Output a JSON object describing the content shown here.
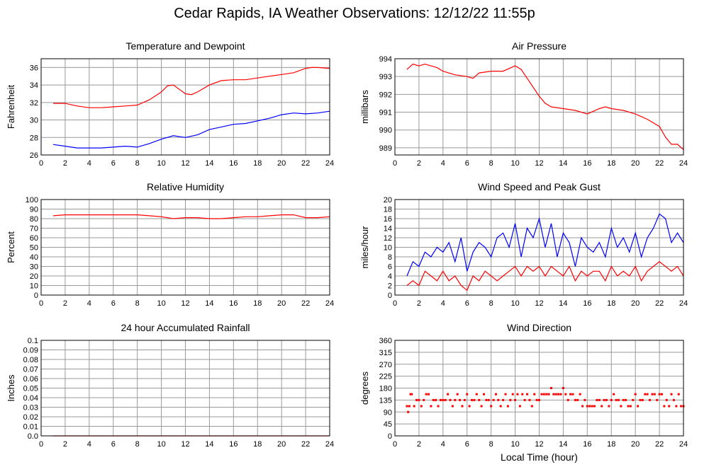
{
  "page": {
    "title": "Cedar Rapids, IA Weather Observations: 12/12/22 11:55p"
  },
  "colors": {
    "red": "#ff0000",
    "blue": "#0000ff",
    "grid": "#999999",
    "frame": "#000000"
  },
  "chart_data": [
    {
      "id": "temp",
      "type": "line",
      "title": "Temperature and Dewpoint",
      "xlabel": "",
      "ylabel": "Fahrenheit",
      "xlim": [
        0,
        24
      ],
      "ylim": [
        26,
        37
      ],
      "xticks": [
        0,
        2,
        4,
        6,
        8,
        10,
        12,
        14,
        16,
        18,
        20,
        22,
        24
      ],
      "yticks": [
        26,
        28,
        30,
        32,
        34,
        36
      ],
      "grid": true,
      "series": [
        {
          "color": "#ff0000",
          "x": [
            1,
            2,
            3,
            4,
            5,
            6,
            7,
            8,
            9,
            10,
            10.5,
            11,
            11.5,
            12,
            12.5,
            13,
            14,
            15,
            16,
            17,
            18,
            19,
            20,
            21,
            22,
            22.5,
            23,
            24
          ],
          "y": [
            31.9,
            31.9,
            31.6,
            31.4,
            31.4,
            31.5,
            31.6,
            31.7,
            32.3,
            33.2,
            33.9,
            34.0,
            33.5,
            33.0,
            32.9,
            33.2,
            34.0,
            34.5,
            34.6,
            34.6,
            34.8,
            35.0,
            35.2,
            35.4,
            35.9,
            36.0,
            36.0,
            35.9
          ]
        },
        {
          "color": "#0000ff",
          "x": [
            1,
            2,
            3,
            4,
            5,
            6,
            7,
            8,
            9,
            10,
            11,
            12,
            13,
            14,
            15,
            16,
            17,
            18,
            19,
            20,
            21,
            22,
            23,
            24
          ],
          "y": [
            27.2,
            27.0,
            26.8,
            26.8,
            26.8,
            26.9,
            27.0,
            26.9,
            27.3,
            27.8,
            28.2,
            28.0,
            28.3,
            28.9,
            29.2,
            29.5,
            29.6,
            29.9,
            30.2,
            30.6,
            30.8,
            30.7,
            30.8,
            31.0
          ]
        }
      ]
    },
    {
      "id": "pressure",
      "type": "line",
      "title": "Air Pressure",
      "xlabel": "",
      "ylabel": "millibars",
      "xlim": [
        0,
        24
      ],
      "ylim": [
        988.6,
        994
      ],
      "xticks": [
        0,
        2,
        4,
        6,
        8,
        10,
        12,
        14,
        16,
        18,
        20,
        22,
        24
      ],
      "yticks": [
        989,
        990,
        991,
        992,
        993,
        994
      ],
      "grid": true,
      "series": [
        {
          "color": "#ff0000",
          "x": [
            1,
            1.5,
            2,
            2.5,
            3,
            3.5,
            4,
            5,
            6,
            6.5,
            7,
            8,
            9,
            10,
            10.5,
            11,
            11.5,
            12,
            12.5,
            13,
            14,
            15,
            16,
            17,
            17.5,
            18,
            19,
            20,
            21,
            22,
            22.5,
            23,
            23.5,
            24
          ],
          "y": [
            993.4,
            993.7,
            993.6,
            993.7,
            993.6,
            993.5,
            993.3,
            993.1,
            993.0,
            992.9,
            993.2,
            993.3,
            993.3,
            993.6,
            993.4,
            992.9,
            992.4,
            991.9,
            991.5,
            991.3,
            991.2,
            991.1,
            990.9,
            991.2,
            991.3,
            991.2,
            991.1,
            990.9,
            990.6,
            990.2,
            989.6,
            989.2,
            989.2,
            988.9
          ]
        }
      ]
    },
    {
      "id": "humidity",
      "type": "line",
      "title": "Relative Humidity",
      "xlabel": "",
      "ylabel": "Percent",
      "xlim": [
        0,
        24
      ],
      "ylim": [
        0,
        100
      ],
      "xticks": [
        0,
        2,
        4,
        6,
        8,
        10,
        12,
        14,
        16,
        18,
        20,
        22,
        24
      ],
      "yticks": [
        0,
        10,
        20,
        30,
        40,
        50,
        60,
        70,
        80,
        90,
        100
      ],
      "grid": true,
      "series": [
        {
          "color": "#ff0000",
          "x": [
            1,
            2,
            3,
            4,
            5,
            6,
            7,
            8,
            9,
            10,
            11,
            12,
            13,
            14,
            15,
            16,
            17,
            18,
            19,
            20,
            21,
            22,
            23,
            24
          ],
          "y": [
            83,
            84,
            84,
            84,
            84,
            84,
            84,
            84,
            83,
            82,
            80,
            81,
            81,
            80,
            80,
            81,
            82,
            82,
            83,
            84,
            84,
            81,
            81,
            82
          ]
        }
      ]
    },
    {
      "id": "wind",
      "type": "line",
      "title": "Wind Speed and Peak Gust",
      "xlabel": "",
      "ylabel": "miles/hour",
      "xlim": [
        0,
        24
      ],
      "ylim": [
        0,
        20
      ],
      "xticks": [
        0,
        2,
        4,
        6,
        8,
        10,
        12,
        14,
        16,
        18,
        20,
        22,
        24
      ],
      "yticks": [
        0,
        2,
        4,
        6,
        8,
        10,
        12,
        14,
        16,
        18,
        20
      ],
      "grid": true,
      "series": [
        {
          "color": "#0000ff",
          "x": [
            1,
            1.5,
            2,
            2.5,
            3,
            3.5,
            4,
            4.5,
            5,
            5.5,
            6,
            6.5,
            7,
            7.5,
            8,
            8.5,
            9,
            9.5,
            10,
            10.5,
            11,
            11.5,
            12,
            12.5,
            13,
            13.5,
            14,
            14.5,
            15,
            15.5,
            16,
            16.5,
            17,
            17.5,
            18,
            18.5,
            19,
            19.5,
            20,
            20.5,
            21,
            21.5,
            22,
            22.5,
            23,
            23.5,
            24
          ],
          "y": [
            4,
            7,
            6,
            9,
            8,
            10,
            9,
            11,
            7,
            12,
            5,
            9,
            11,
            10,
            8,
            12,
            13,
            10,
            15,
            8,
            14,
            12,
            16,
            10,
            15,
            8,
            13,
            11,
            6,
            12,
            10,
            9,
            11,
            8,
            14,
            10,
            12,
            9,
            13,
            8,
            12,
            14,
            17,
            16,
            11,
            13,
            11
          ]
        },
        {
          "color": "#ff0000",
          "x": [
            1,
            1.5,
            2,
            2.5,
            3,
            3.5,
            4,
            4.5,
            5,
            5.5,
            6,
            6.5,
            7,
            7.5,
            8,
            8.5,
            9,
            9.5,
            10,
            10.5,
            11,
            11.5,
            12,
            12.5,
            13,
            13.5,
            14,
            14.5,
            15,
            15.5,
            16,
            16.5,
            17,
            17.5,
            18,
            18.5,
            19,
            19.5,
            20,
            20.5,
            21,
            21.5,
            22,
            22.5,
            23,
            23.5,
            24
          ],
          "y": [
            2,
            3,
            2,
            5,
            4,
            3,
            5,
            3,
            4,
            2,
            1,
            4,
            3,
            5,
            4,
            3,
            4,
            5,
            6,
            4,
            6,
            5,
            6,
            4,
            6,
            5,
            4,
            6,
            3,
            5,
            4,
            5,
            5,
            3,
            6,
            4,
            5,
            4,
            6,
            3,
            5,
            6,
            7,
            6,
            5,
            6,
            4
          ]
        }
      ]
    },
    {
      "id": "rain",
      "type": "line",
      "title": "24 hour Accumulated Rainfall",
      "xlabel": "",
      "ylabel": "Inches",
      "xlim": [
        0,
        24
      ],
      "ylim": [
        0,
        0.1
      ],
      "xticks": [
        0,
        2,
        4,
        6,
        8,
        10,
        12,
        14,
        16,
        18,
        20,
        22,
        24
      ],
      "yticks": [
        0.0,
        0.01,
        0.02,
        0.03,
        0.04,
        0.05,
        0.06,
        0.07,
        0.08,
        0.09,
        0.1
      ],
      "ytick_labels": [
        "0.0",
        "0.01",
        "0.02",
        "0.03",
        "0.04",
        "0.05",
        "0.06",
        "0.07",
        "0.08",
        "0.09",
        "0.1"
      ],
      "grid": true,
      "series": [
        {
          "color": "#ff0000",
          "x": [
            1,
            24
          ],
          "y": [
            0,
            0
          ]
        }
      ]
    },
    {
      "id": "direction",
      "type": "scatter",
      "title": "Wind Direction",
      "xlabel": "Local Time (hour)",
      "ylabel": "degrees",
      "xlim": [
        0,
        24
      ],
      "ylim": [
        0,
        360
      ],
      "xticks": [
        0,
        2,
        4,
        6,
        8,
        10,
        12,
        14,
        16,
        18,
        20,
        22,
        24
      ],
      "yticks": [
        0,
        45,
        90,
        135,
        180,
        225,
        270,
        315,
        360
      ],
      "grid": true,
      "series": [
        {
          "color": "#ff0000",
          "x": [
            1.0,
            1.1,
            1.2,
            1.3,
            1.4,
            1.6,
            1.8,
            2.0,
            2.2,
            2.4,
            2.6,
            2.8,
            3.0,
            3.2,
            3.4,
            3.6,
            3.8,
            4.0,
            4.2,
            4.4,
            4.6,
            4.8,
            5.0,
            5.2,
            5.4,
            5.6,
            5.8,
            6.0,
            6.2,
            6.4,
            6.6,
            6.8,
            7.0,
            7.2,
            7.4,
            7.6,
            7.8,
            8.0,
            8.2,
            8.4,
            8.6,
            8.8,
            9.0,
            9.2,
            9.4,
            9.6,
            9.8,
            10.0,
            10.2,
            10.4,
            10.6,
            10.8,
            11.0,
            11.2,
            11.4,
            11.6,
            11.8,
            12.0,
            12.2,
            12.4,
            12.6,
            12.8,
            13.0,
            13.2,
            13.4,
            13.6,
            13.8,
            14.0,
            14.2,
            14.4,
            14.6,
            14.8,
            15.0,
            15.2,
            15.4,
            15.6,
            15.8,
            16.0,
            16.2,
            16.4,
            16.6,
            16.8,
            17.0,
            17.2,
            17.4,
            17.6,
            17.8,
            18.0,
            18.2,
            18.4,
            18.6,
            18.8,
            19.0,
            19.2,
            19.4,
            19.6,
            19.8,
            20.0,
            20.2,
            20.4,
            20.6,
            20.8,
            21.0,
            21.2,
            21.4,
            21.6,
            21.8,
            22.0,
            22.2,
            22.4,
            22.6,
            22.8,
            23.0,
            23.2,
            23.4,
            23.6,
            23.8,
            24.0
          ],
          "y": [
            112,
            90,
            112,
            157,
            157,
            112,
            135,
            135,
            112,
            135,
            157,
            157,
            112,
            135,
            135,
            112,
            135,
            135,
            135,
            157,
            135,
            112,
            135,
            157,
            135,
            112,
            135,
            157,
            112,
            135,
            135,
            157,
            135,
            112,
            157,
            135,
            135,
            112,
            135,
            157,
            135,
            112,
            135,
            157,
            112,
            135,
            157,
            135,
            157,
            112,
            157,
            135,
            157,
            135,
            112,
            157,
            135,
            135,
            157,
            157,
            157,
            157,
            180,
            157,
            157,
            157,
            157,
            180,
            157,
            135,
            157,
            157,
            135,
            135,
            157,
            112,
            135,
            112,
            112,
            112,
            112,
            135,
            135,
            112,
            135,
            135,
            112,
            135,
            157,
            135,
            135,
            112,
            135,
            135,
            112,
            112,
            135,
            157,
            112,
            135,
            135,
            157,
            157,
            135,
            157,
            157,
            135,
            157,
            157,
            112,
            135,
            112,
            157,
            135,
            112,
            157,
            112,
            112
          ]
        }
      ]
    }
  ]
}
